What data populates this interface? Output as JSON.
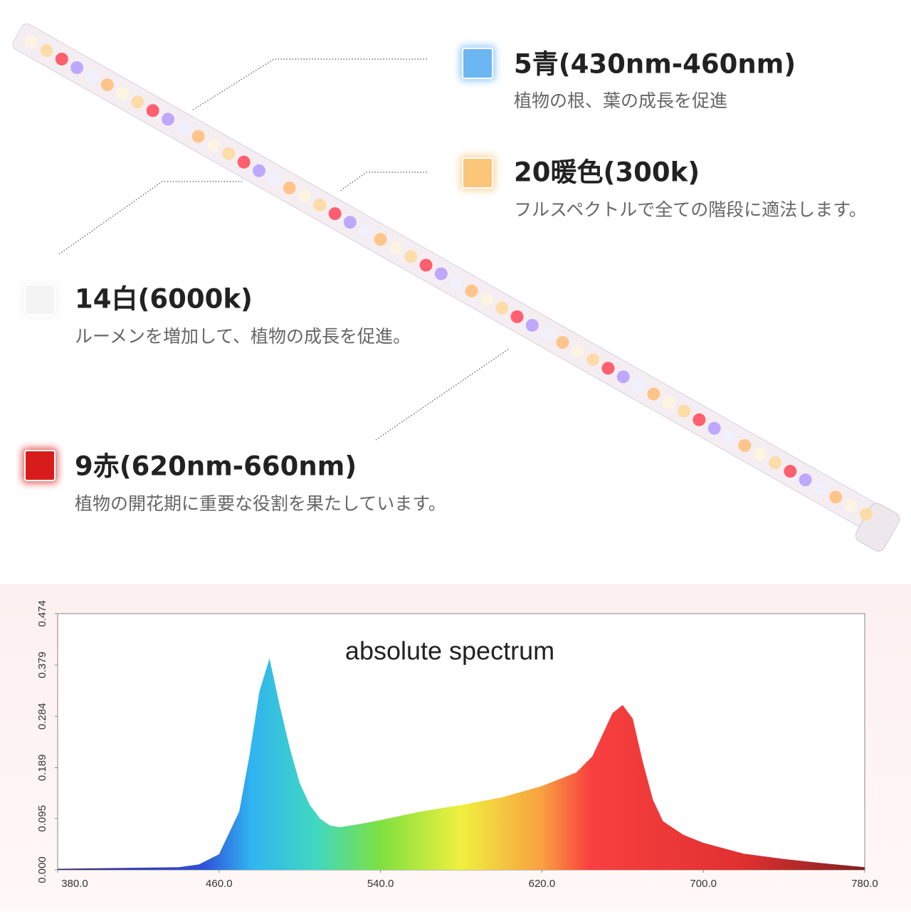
{
  "features": [
    {
      "title": "5青(430nm-460nm)",
      "description": "植物の根、葉の成長を促進",
      "color": "#6cb6f2"
    },
    {
      "title": "20暖色(300k)",
      "description": "フルスペクトルで全ての階段に適法します。",
      "color": "#fbc57a"
    },
    {
      "title": "14白(6000k)",
      "description": "ルーメンを増加して、植物の成長を促進。",
      "color": "#f4f4f4"
    },
    {
      "title": "9赤(620nm-660nm)",
      "description": "植物の開花期に重要な役割を果たしています。",
      "color": "#d81c1c"
    }
  ],
  "chart_data": {
    "type": "area",
    "title": "absolute spectrum",
    "x": [
      380,
      400,
      420,
      440,
      450,
      460,
      470,
      475,
      480,
      485,
      490,
      495,
      500,
      505,
      510,
      515,
      520,
      530,
      540,
      550,
      560,
      580,
      600,
      620,
      637,
      645,
      650,
      655,
      660,
      665,
      670,
      675,
      680,
      690,
      700,
      720,
      740,
      760,
      780
    ],
    "values": [
      0.002,
      0.003,
      0.004,
      0.005,
      0.01,
      0.029,
      0.108,
      0.21,
      0.33,
      0.391,
      0.305,
      0.226,
      0.16,
      0.12,
      0.095,
      0.082,
      0.079,
      0.085,
      0.092,
      0.1,
      0.108,
      0.12,
      0.134,
      0.155,
      0.18,
      0.21,
      0.25,
      0.29,
      0.305,
      0.28,
      0.2,
      0.13,
      0.09,
      0.065,
      0.05,
      0.03,
      0.02,
      0.012,
      0.005
    ],
    "xlim": [
      380,
      780
    ],
    "xticks": [
      {
        "value": 380,
        "label": "380.0"
      },
      {
        "value": 460,
        "label": "460.0"
      },
      {
        "value": 540,
        "label": "540.0"
      },
      {
        "value": 620,
        "label": "620.0"
      },
      {
        "value": 700,
        "label": "700.0"
      },
      {
        "value": 780,
        "label": "780.0"
      }
    ],
    "ylim": [
      0,
      0.474
    ],
    "yticks": [
      {
        "value": 0,
        "label": "0.000"
      },
      0.095,
      0.189,
      0.284,
      0.379,
      0.474
    ]
  }
}
